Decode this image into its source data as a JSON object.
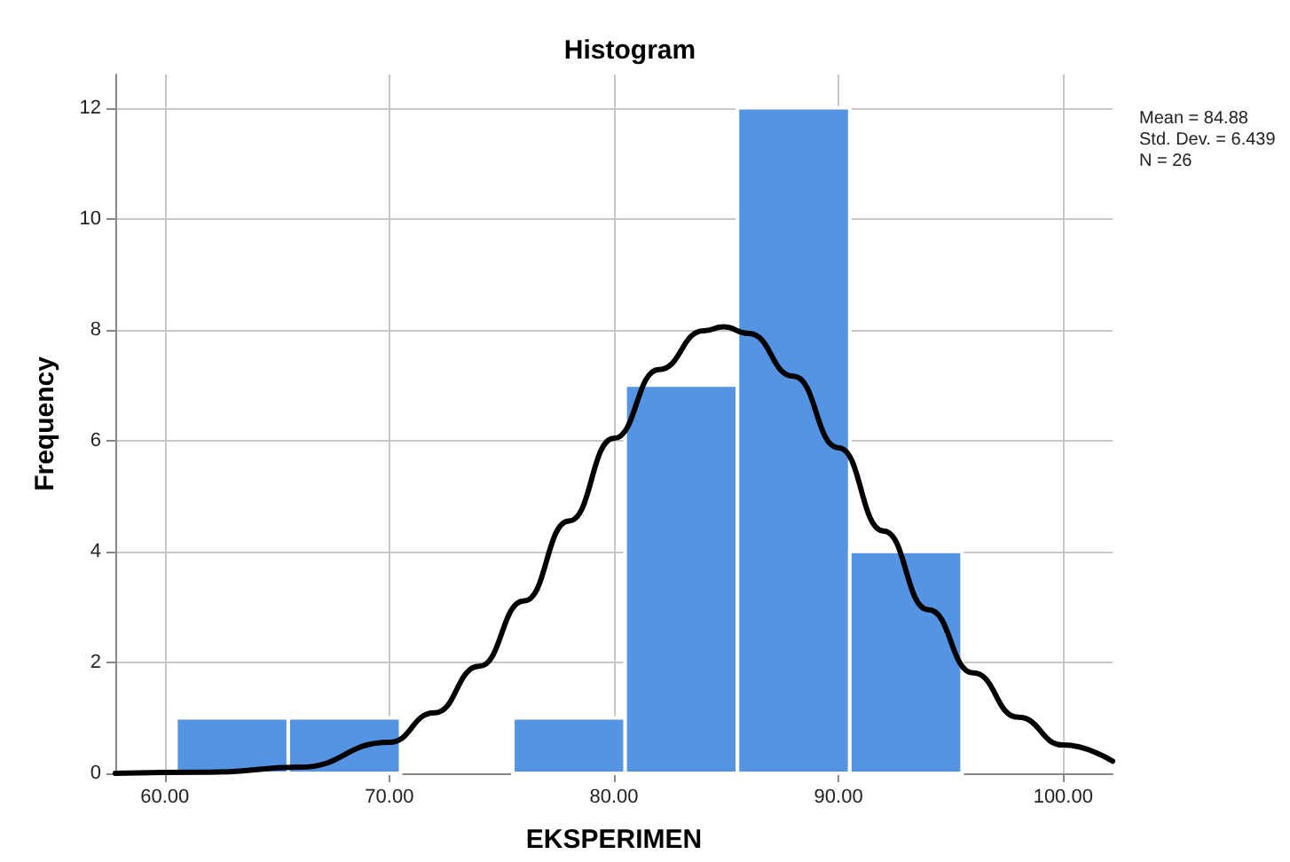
{
  "chart_data": {
    "type": "histogram",
    "title": "Histogram",
    "xlabel": "EKSPERIMEN",
    "ylabel": "Frequency",
    "bins": [
      60.5,
      65.5,
      70.5,
      75.5,
      80.5,
      85.5,
      90.5,
      95.5
    ],
    "values": [
      1,
      1,
      0,
      1,
      7,
      12,
      4
    ],
    "color": "#5593e3",
    "series": [
      {
        "type": "line",
        "color": "#000000",
        "x": [
          57.8,
          62,
          66,
          70,
          72,
          74,
          76,
          78,
          80,
          82,
          84,
          84.88,
          86,
          88,
          90,
          92,
          94,
          96,
          98,
          100,
          102.2
        ],
        "values": [
          0,
          0.02,
          0.11,
          0.56,
          1.09,
          1.93,
          3.11,
          4.55,
          6.04,
          7.28,
          7.98,
          8.05,
          7.93,
          7.16,
          5.87,
          4.37,
          2.95,
          1.81,
          1.01,
          0.51,
          0.22
        ]
      }
    ],
    "xlim": [
      57.8,
      102.2
    ],
    "xticks": [
      {
        "value": 60,
        "label": "60.00"
      },
      {
        "value": 70,
        "label": "70.00"
      },
      {
        "value": 80,
        "label": "80.00"
      },
      {
        "value": 90,
        "label": "90.00"
      },
      {
        "value": 100,
        "label": "100.00"
      }
    ],
    "ylim": [
      0,
      12.6
    ],
    "yticks": [
      0,
      2,
      4,
      6,
      8,
      10,
      12
    ],
    "grid": true,
    "annotations": [
      "Mean = 84.88",
      "Std. Dev. = 6.439",
      "N = 26"
    ]
  }
}
